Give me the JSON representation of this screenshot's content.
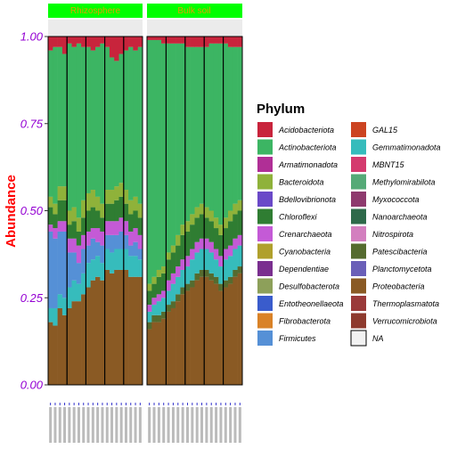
{
  "chart_data": {
    "type": "bar",
    "stacked": true,
    "facets": [
      "Rhizosphere",
      "Bulk soil"
    ],
    "ylabel": "Abundance",
    "ylim": [
      0,
      1
    ],
    "yticks": [
      "0.00",
      "0.25",
      "0.50",
      "0.75",
      "1.00"
    ],
    "legend": {
      "title": "Phylum",
      "placement": "right",
      "entries": [
        {
          "name": "Acidobacteriota",
          "color": "#c8243c"
        },
        {
          "name": "Actinobacteriota",
          "color": "#3cb563"
        },
        {
          "name": "Armatimonadota",
          "color": "#b02f96"
        },
        {
          "name": "Bacteroidota",
          "color": "#8fb23a"
        },
        {
          "name": "Bdellovibrionota",
          "color": "#6a49c8"
        },
        {
          "name": "Chloroflexi",
          "color": "#2f7d32"
        },
        {
          "name": "Crenarchaeota",
          "color": "#c45ad6"
        },
        {
          "name": "Cyanobacteria",
          "color": "#b0a02c"
        },
        {
          "name": "Dependentiae",
          "color": "#7a2f8f"
        },
        {
          "name": "Desulfobacterota",
          "color": "#8da05a"
        },
        {
          "name": "Entotheonellaeota",
          "color": "#3a5ccc"
        },
        {
          "name": "Fibrobacterota",
          "color": "#d98227"
        },
        {
          "name": "Firmicutes",
          "color": "#5590d6"
        },
        {
          "name": "GAL15",
          "color": "#cc4422"
        },
        {
          "name": "Gemmatimonadota",
          "color": "#36bcbc"
        },
        {
          "name": "MBNT15",
          "color": "#d43a6e"
        },
        {
          "name": "Methylomirabilota",
          "color": "#55aa77"
        },
        {
          "name": "Myxococcota",
          "color": "#8e3a6e"
        },
        {
          "name": "Nanoarchaeota",
          "color": "#2e6a4a"
        },
        {
          "name": "Nitrospirota",
          "color": "#d37fbf"
        },
        {
          "name": "Patescibacteria",
          "color": "#556b2f"
        },
        {
          "name": "Planctomycetota",
          "color": "#6a5fb8"
        },
        {
          "name": "Proteobacteria",
          "color": "#8a5a24"
        },
        {
          "name": "Thermoplasmatota",
          "color": "#9a3a3a"
        },
        {
          "name": "Verrucomicrobiota",
          "color": "#8e3a2e"
        },
        {
          "name": "NA",
          "color": "#f2f2f2"
        }
      ]
    },
    "panel_bars": [
      [
        {
          "Acidobacteriota": 0.04,
          "Actinobacteriota": 0.42,
          "Chloroflexi": 0.05,
          "Firmicutes": 0.22,
          "Gemmatimonadota": 0.04,
          "Proteobacteria": 0.18,
          "Crenarchaeota": 0.02,
          "Bacteroidota": 0.03
        },
        {
          "Acidobacteriota": 0.03,
          "Actinobacteriota": 0.45,
          "Chloroflexi": 0.04,
          "Firmicutes": 0.2,
          "Gemmatimonadota": 0.05,
          "Proteobacteria": 0.17,
          "Crenarchaeota": 0.03,
          "Bacteroidota": 0.03
        },
        {
          "Acidobacteriota": 0.03,
          "Actinobacteriota": 0.4,
          "Chloroflexi": 0.06,
          "Firmicutes": 0.18,
          "Gemmatimonadota": 0.04,
          "Proteobacteria": 0.22,
          "Crenarchaeota": 0.03,
          "Bacteroidota": 0.04
        },
        {
          "Acidobacteriota": 0.05,
          "Actinobacteriota": 0.38,
          "Chloroflexi": 0.06,
          "Firmicutes": 0.19,
          "Gemmatimonadota": 0.05,
          "Proteobacteria": 0.2,
          "Crenarchaeota": 0.03,
          "Bacteroidota": 0.04
        },
        {
          "Acidobacteriota": 0.02,
          "Actinobacteriota": 0.48,
          "Chloroflexi": 0.04,
          "Firmicutes": 0.1,
          "Gemmatimonadota": 0.06,
          "Proteobacteria": 0.22,
          "Crenarchaeota": 0.04,
          "Bacteroidota": 0.04
        },
        {
          "Acidobacteriota": 0.03,
          "Actinobacteriota": 0.46,
          "Chloroflexi": 0.05,
          "Firmicutes": 0.08,
          "Gemmatimonadota": 0.06,
          "Proteobacteria": 0.24,
          "Crenarchaeota": 0.04,
          "Bacteroidota": 0.04
        },
        {
          "Acidobacteriota": 0.02,
          "Actinobacteriota": 0.5,
          "Chloroflexi": 0.04,
          "Firmicutes": 0.06,
          "Gemmatimonadota": 0.05,
          "Proteobacteria": 0.24,
          "Crenarchaeota": 0.05,
          "Bacteroidota": 0.04
        },
        {
          "Acidobacteriota": 0.03,
          "Actinobacteriota": 0.44,
          "Chloroflexi": 0.05,
          "Firmicutes": 0.07,
          "Gemmatimonadota": 0.06,
          "Proteobacteria": 0.26,
          "Crenarchaeota": 0.04,
          "Bacteroidota": 0.05
        },
        {
          "Acidobacteriota": 0.03,
          "Actinobacteriota": 0.42,
          "Chloroflexi": 0.06,
          "Firmicutes": 0.05,
          "Gemmatimonadota": 0.07,
          "Proteobacteria": 0.28,
          "Crenarchaeota": 0.04,
          "Bacteroidota": 0.05
        },
        {
          "Acidobacteriota": 0.04,
          "Actinobacteriota": 0.4,
          "Chloroflexi": 0.06,
          "Firmicutes": 0.06,
          "Gemmatimonadota": 0.06,
          "Proteobacteria": 0.3,
          "Crenarchaeota": 0.03,
          "Bacteroidota": 0.05
        },
        {
          "Acidobacteriota": 0.03,
          "Actinobacteriota": 0.43,
          "Chloroflexi": 0.05,
          "Firmicutes": 0.04,
          "Gemmatimonadota": 0.06,
          "Proteobacteria": 0.31,
          "Crenarchaeota": 0.04,
          "Bacteroidota": 0.04
        },
        {
          "Acidobacteriota": 0.02,
          "Actinobacteriota": 0.46,
          "Chloroflexi": 0.04,
          "Firmicutes": 0.05,
          "Gemmatimonadota": 0.05,
          "Proteobacteria": 0.3,
          "Crenarchaeota": 0.04,
          "Bacteroidota": 0.04
        },
        {
          "Acidobacteriota": 0.03,
          "Actinobacteriota": 0.41,
          "Chloroflexi": 0.05,
          "Firmicutes": 0.04,
          "Gemmatimonadota": 0.06,
          "Proteobacteria": 0.33,
          "Crenarchaeota": 0.04,
          "Bacteroidota": 0.04
        },
        {
          "Acidobacteriota": 0.06,
          "Actinobacteriota": 0.38,
          "Chloroflexi": 0.05,
          "Firmicutes": 0.05,
          "Gemmatimonadota": 0.06,
          "Proteobacteria": 0.32,
          "Crenarchaeota": 0.04,
          "Bacteroidota": 0.04
        },
        {
          "Acidobacteriota": 0.07,
          "Actinobacteriota": 0.36,
          "Chloroflexi": 0.06,
          "Firmicutes": 0.04,
          "Gemmatimonadota": 0.06,
          "Proteobacteria": 0.33,
          "Crenarchaeota": 0.04,
          "Bacteroidota": 0.04
        },
        {
          "Acidobacteriota": 0.05,
          "Actinobacteriota": 0.37,
          "Chloroflexi": 0.06,
          "Firmicutes": 0.05,
          "Gemmatimonadota": 0.06,
          "Proteobacteria": 0.33,
          "Crenarchaeota": 0.04,
          "Bacteroidota": 0.04
        },
        {
          "Acidobacteriota": 0.04,
          "Actinobacteriota": 0.4,
          "Chloroflexi": 0.05,
          "Firmicutes": 0.04,
          "Gemmatimonadota": 0.06,
          "Proteobacteria": 0.33,
          "Crenarchaeota": 0.04,
          "Bacteroidota": 0.04
        },
        {
          "Acidobacteriota": 0.03,
          "Actinobacteriota": 0.44,
          "Chloroflexi": 0.05,
          "Firmicutes": 0.03,
          "Gemmatimonadota": 0.06,
          "Proteobacteria": 0.31,
          "Crenarchaeota": 0.04,
          "Bacteroidota": 0.04
        },
        {
          "Acidobacteriota": 0.04,
          "Actinobacteriota": 0.42,
          "Chloroflexi": 0.05,
          "Firmicutes": 0.04,
          "Gemmatimonadota": 0.06,
          "Proteobacteria": 0.31,
          "Crenarchaeota": 0.04,
          "Bacteroidota": 0.04
        },
        {
          "Acidobacteriota": 0.03,
          "Actinobacteriota": 0.45,
          "Chloroflexi": 0.05,
          "Firmicutes": 0.03,
          "Gemmatimonadota": 0.05,
          "Proteobacteria": 0.31,
          "Crenarchaeota": 0.04,
          "Bacteroidota": 0.04
        }
      ],
      [
        {
          "Acidobacteriota": 0.01,
          "Actinobacteriota": 0.7,
          "Chloroflexi": 0.04,
          "Gemmatimonadota": 0.03,
          "Proteobacteria": 0.16,
          "Crenarchaeota": 0.02,
          "Bacteroidota": 0.02,
          "Patescibacteria": 0.02
        },
        {
          "Acidobacteriota": 0.01,
          "Actinobacteriota": 0.68,
          "Chloroflexi": 0.04,
          "Gemmatimonadota": 0.03,
          "Proteobacteria": 0.18,
          "Crenarchaeota": 0.02,
          "Bacteroidota": 0.02,
          "Patescibacteria": 0.02
        },
        {
          "Acidobacteriota": 0.01,
          "Actinobacteriota": 0.66,
          "Chloroflexi": 0.05,
          "Gemmatimonadota": 0.04,
          "Proteobacteria": 0.18,
          "Crenarchaeota": 0.02,
          "Bacteroidota": 0.02,
          "Patescibacteria": 0.02
        },
        {
          "Acidobacteriota": 0.02,
          "Actinobacteriota": 0.64,
          "Chloroflexi": 0.05,
          "Gemmatimonadota": 0.04,
          "Proteobacteria": 0.19,
          "Crenarchaeota": 0.02,
          "Bacteroidota": 0.02,
          "Patescibacteria": 0.02
        },
        {
          "Acidobacteriota": 0.02,
          "Actinobacteriota": 0.6,
          "Chloroflexi": 0.06,
          "Gemmatimonadota": 0.04,
          "Proteobacteria": 0.21,
          "Crenarchaeota": 0.03,
          "Bacteroidota": 0.02,
          "Patescibacteria": 0.02
        },
        {
          "Acidobacteriota": 0.02,
          "Actinobacteriota": 0.58,
          "Chloroflexi": 0.06,
          "Gemmatimonadota": 0.05,
          "Proteobacteria": 0.22,
          "Crenarchaeota": 0.03,
          "Bacteroidota": 0.02,
          "Patescibacteria": 0.02
        },
        {
          "Acidobacteriota": 0.02,
          "Actinobacteriota": 0.55,
          "Chloroflexi": 0.06,
          "Gemmatimonadota": 0.05,
          "Proteobacteria": 0.24,
          "Crenarchaeota": 0.03,
          "Bacteroidota": 0.03,
          "Patescibacteria": 0.02
        },
        {
          "Acidobacteriota": 0.02,
          "Actinobacteriota": 0.52,
          "Chloroflexi": 0.07,
          "Gemmatimonadota": 0.05,
          "Proteobacteria": 0.26,
          "Crenarchaeota": 0.03,
          "Bacteroidota": 0.03,
          "Patescibacteria": 0.02
        },
        {
          "Acidobacteriota": 0.03,
          "Actinobacteriota": 0.5,
          "Chloroflexi": 0.07,
          "Gemmatimonadota": 0.05,
          "Proteobacteria": 0.27,
          "Crenarchaeota": 0.03,
          "Bacteroidota": 0.03,
          "Patescibacteria": 0.02
        },
        {
          "Acidobacteriota": 0.03,
          "Actinobacteriota": 0.48,
          "Chloroflexi": 0.07,
          "Gemmatimonadota": 0.06,
          "Proteobacteria": 0.28,
          "Crenarchaeota": 0.03,
          "Bacteroidota": 0.03,
          "Patescibacteria": 0.02
        },
        {
          "Acidobacteriota": 0.03,
          "Actinobacteriota": 0.46,
          "Chloroflexi": 0.07,
          "Gemmatimonadota": 0.06,
          "Proteobacteria": 0.3,
          "Crenarchaeota": 0.03,
          "Bacteroidota": 0.03,
          "Patescibacteria": 0.02
        },
        {
          "Acidobacteriota": 0.03,
          "Actinobacteriota": 0.45,
          "Chloroflexi": 0.07,
          "Gemmatimonadota": 0.06,
          "Proteobacteria": 0.31,
          "Crenarchaeota": 0.03,
          "Bacteroidota": 0.03,
          "Patescibacteria": 0.02
        },
        {
          "Acidobacteriota": 0.03,
          "Actinobacteriota": 0.46,
          "Chloroflexi": 0.06,
          "Gemmatimonadota": 0.06,
          "Proteobacteria": 0.31,
          "Crenarchaeota": 0.03,
          "Bacteroidota": 0.03,
          "Patescibacteria": 0.02
        },
        {
          "Acidobacteriota": 0.02,
          "Actinobacteriota": 0.48,
          "Chloroflexi": 0.06,
          "Gemmatimonadota": 0.06,
          "Proteobacteria": 0.3,
          "Crenarchaeota": 0.03,
          "Bacteroidota": 0.03,
          "Patescibacteria": 0.02
        },
        {
          "Acidobacteriota": 0.02,
          "Actinobacteriota": 0.5,
          "Chloroflexi": 0.06,
          "Gemmatimonadota": 0.05,
          "Proteobacteria": 0.29,
          "Crenarchaeota": 0.03,
          "Bacteroidota": 0.03,
          "Patescibacteria": 0.02
        },
        {
          "Acidobacteriota": 0.02,
          "Actinobacteriota": 0.52,
          "Chloroflexi": 0.06,
          "Gemmatimonadota": 0.05,
          "Proteobacteria": 0.27,
          "Crenarchaeota": 0.03,
          "Bacteroidota": 0.03,
          "Patescibacteria": 0.02
        },
        {
          "Acidobacteriota": 0.02,
          "Actinobacteriota": 0.5,
          "Chloroflexi": 0.06,
          "Gemmatimonadota": 0.06,
          "Proteobacteria": 0.28,
          "Crenarchaeota": 0.03,
          "Bacteroidota": 0.03,
          "Patescibacteria": 0.02
        },
        {
          "Acidobacteriota": 0.03,
          "Actinobacteriota": 0.47,
          "Chloroflexi": 0.07,
          "Gemmatimonadota": 0.06,
          "Proteobacteria": 0.29,
          "Crenarchaeota": 0.03,
          "Bacteroidota": 0.03,
          "Patescibacteria": 0.02
        },
        {
          "Acidobacteriota": 0.03,
          "Actinobacteriota": 0.45,
          "Chloroflexi": 0.07,
          "Gemmatimonadota": 0.06,
          "Proteobacteria": 0.31,
          "Crenarchaeota": 0.03,
          "Bacteroidota": 0.03,
          "Patescibacteria": 0.02
        },
        {
          "Acidobacteriota": 0.03,
          "Actinobacteriota": 0.44,
          "Chloroflexi": 0.07,
          "Gemmatimonadota": 0.06,
          "Proteobacteria": 0.32,
          "Crenarchaeota": 0.03,
          "Bacteroidota": 0.03,
          "Patescibacteria": 0.02
        }
      ]
    ],
    "outlined_groups_per_panel": 5
  }
}
